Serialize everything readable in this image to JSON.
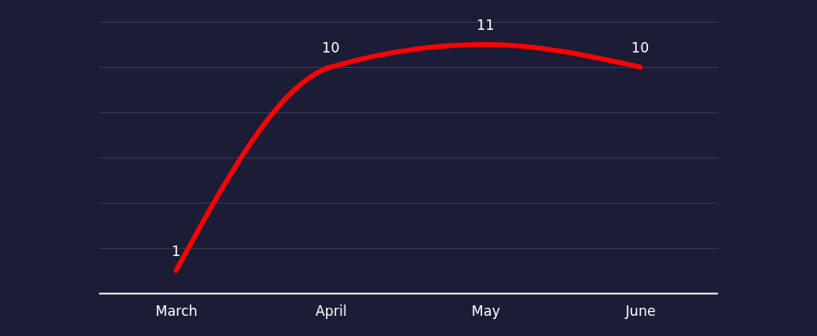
{
  "chart_data": {
    "type": "line",
    "categories": [
      "March",
      "April",
      "May",
      "June"
    ],
    "series": [
      {
        "color": "#ff0000",
        "values": [
          1,
          10,
          11,
          10
        ]
      }
    ],
    "ylim": [
      0,
      12
    ],
    "yticks": [
      {
        "value": 0,
        "label": null
      },
      {
        "value": 2,
        "label": null
      },
      {
        "value": 4,
        "label": null
      },
      {
        "value": 6,
        "label": null
      },
      {
        "value": 8,
        "label": null
      },
      {
        "value": 10,
        "label": null
      },
      {
        "value": 12,
        "label": null
      }
    ],
    "tick_labels": "x",
    "grid": "y",
    "data_labels": true,
    "marker": "none",
    "line_style": "solid",
    "legend": false
  }
}
